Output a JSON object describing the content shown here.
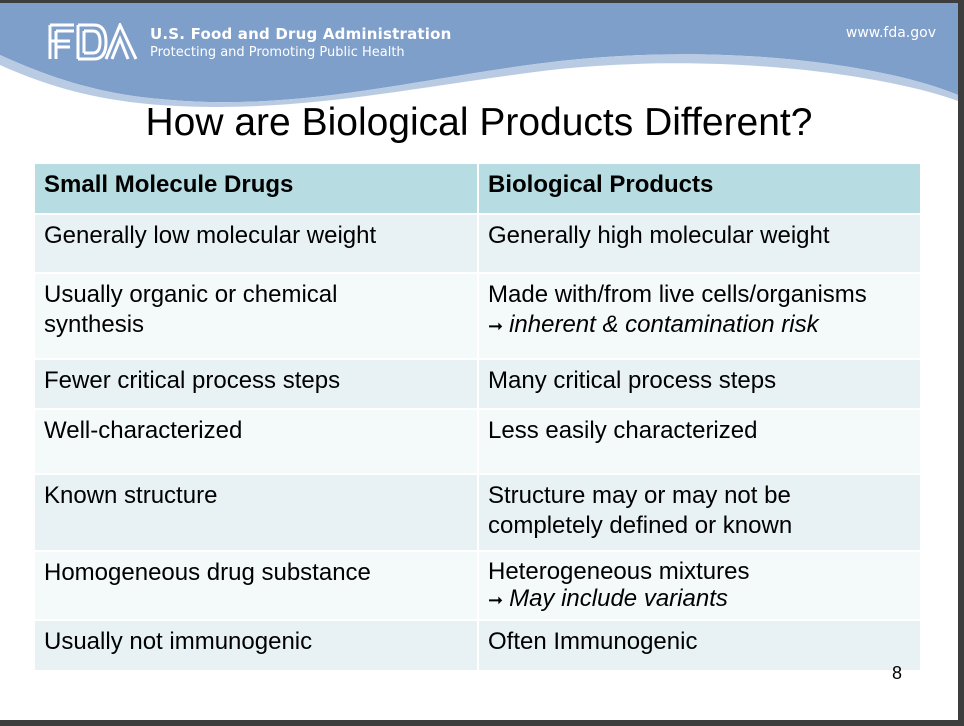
{
  "header": {
    "agency_name": "U.S. Food and Drug Administration",
    "tagline": "Protecting and Promoting Public Health",
    "url": "www.fda.gov",
    "logo_text": "FDA",
    "colors": {
      "banner": "#7f9fcb",
      "table_header": "#b7dde2",
      "row_a": "#e8f2f4",
      "row_b": "#f4f9fa"
    }
  },
  "title": "How are Biological Products Different?",
  "table": {
    "headers": [
      "Small Molecule Drugs",
      "Biological Products"
    ],
    "rows": [
      {
        "left": "Generally low molecular weight",
        "right": "Generally high molecular weight",
        "note": ""
      },
      {
        "left": "Usually organic or chemical synthesis",
        "right": "Made with/from live cells/organisms",
        "note": "inherent & contamination risk"
      },
      {
        "left": "Fewer critical process steps",
        "right": "Many critical process steps",
        "note": ""
      },
      {
        "left": "Well-characterized",
        "right": "Less easily characterized",
        "note": ""
      },
      {
        "left": "Known structure",
        "right": "Structure may or may not be completely defined or known",
        "note": ""
      },
      {
        "left": "Homogeneous drug substance",
        "right": "Heterogeneous mixtures",
        "note": "May include variants"
      },
      {
        "left": "Usually not immunogenic",
        "right": "Often Immunogenic",
        "note": ""
      }
    ],
    "arrow_icon": "➞"
  },
  "page_number": "8"
}
